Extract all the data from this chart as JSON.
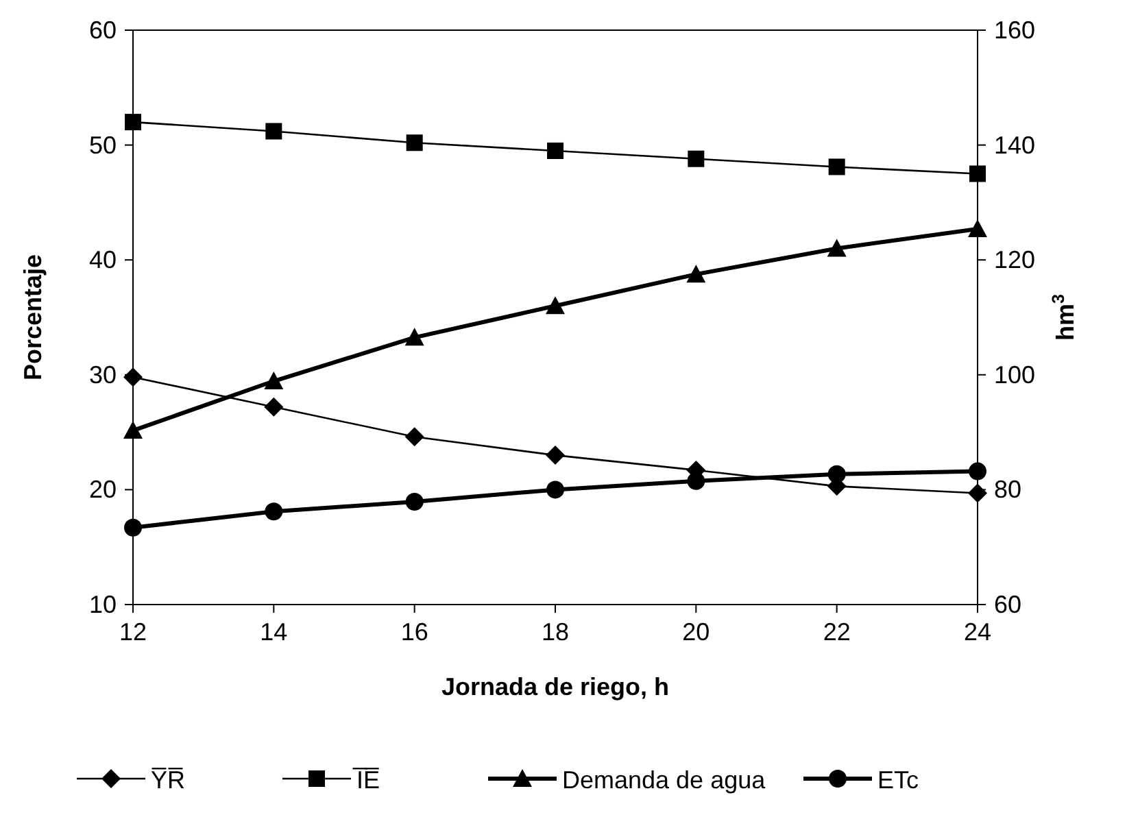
{
  "chart_data": {
    "type": "line",
    "xlabel": "Jornada de riego, h",
    "ylabel": "Porcentaje",
    "y2label": "hm$^{3}$",
    "x": [
      12,
      14,
      16,
      18,
      20,
      22,
      24
    ],
    "xlim": [
      12,
      24
    ],
    "xticks": [
      12,
      14,
      16,
      18,
      20,
      22,
      24
    ],
    "ylim": [
      10,
      60
    ],
    "yticks": [
      10,
      20,
      30,
      40,
      50,
      60
    ],
    "y2lim": [
      60,
      160
    ],
    "y2ticks": [
      60,
      80,
      100,
      120,
      140,
      160
    ],
    "grid": false,
    "legend": "bottom",
    "line_style": "solid",
    "series": [
      {
        "name": "Y̅R̅",
        "color": "#000000",
        "marker": "diamond",
        "values": [
          29.8,
          27.2,
          24.6,
          23.0,
          21.7,
          20.3,
          19.7
        ]
      },
      {
        "name": "I̅E̅",
        "color": "#000000",
        "marker": "square",
        "values": [
          52.0,
          51.2,
          50.2,
          49.5,
          48.8,
          48.1,
          47.5
        ]
      },
      {
        "name": "Demanda de agua",
        "color": "#000000",
        "marker": "triangle",
        "axis": "y2",
        "values": [
          90.3,
          98.9,
          106.5,
          112.0,
          117.5,
          122.0,
          125.4
        ]
      },
      {
        "name": "ETc",
        "color": "#000000",
        "marker": "circle",
        "axis": "y2",
        "values": [
          73.4,
          76.2,
          77.9,
          80.0,
          81.5,
          82.7,
          83.2
        ]
      }
    ]
  }
}
